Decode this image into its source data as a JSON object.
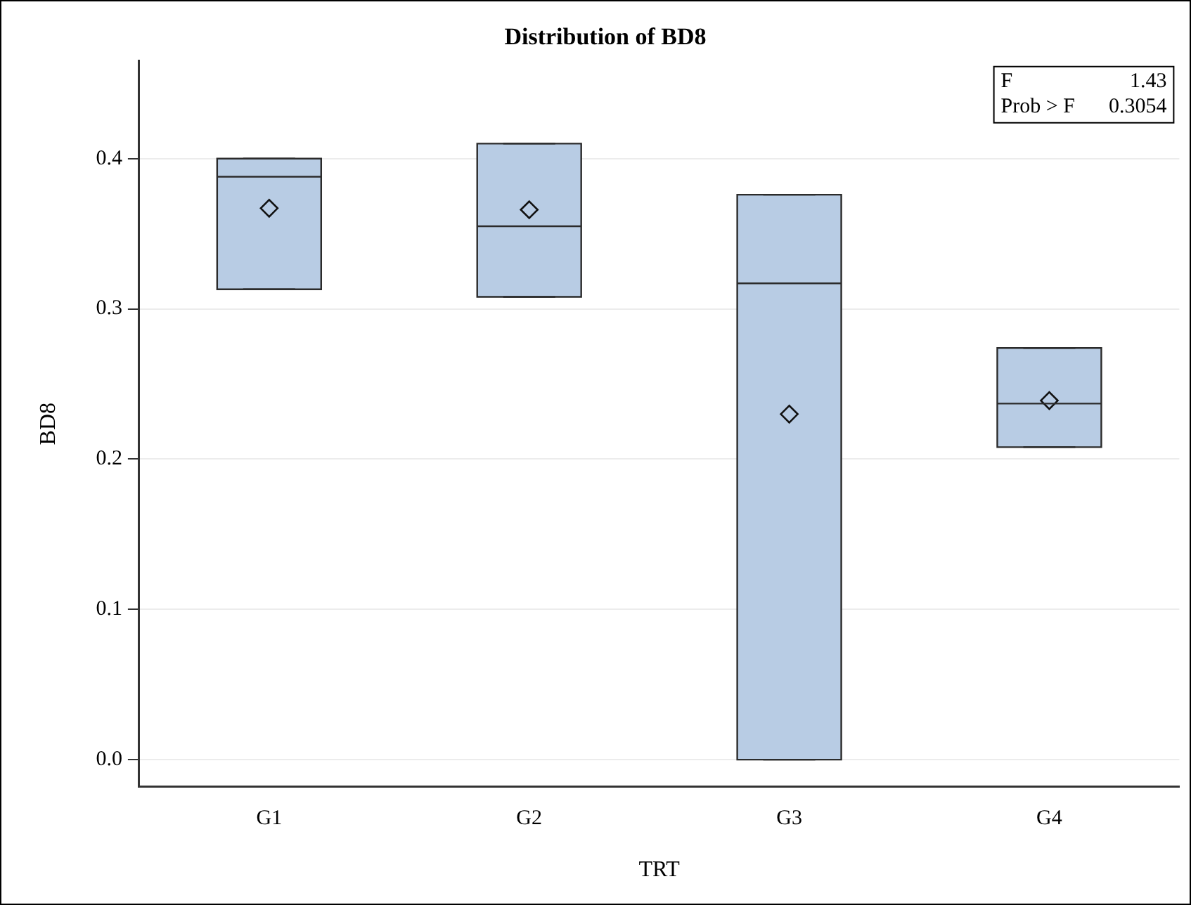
{
  "chart_data": {
    "type": "box",
    "title": "Distribution of BD8",
    "xlabel": "TRT",
    "ylabel": "BD8",
    "categories": [
      "G1",
      "G2",
      "G3",
      "G4"
    ],
    "boxes": [
      {
        "low": 0.313,
        "q1": 0.313,
        "median": 0.388,
        "q3": 0.4,
        "high": 0.4,
        "mean": 0.367
      },
      {
        "low": 0.308,
        "q1": 0.308,
        "median": 0.355,
        "q3": 0.41,
        "high": 0.41,
        "mean": 0.366
      },
      {
        "low": 0,
        "q1": 0,
        "median": 0.317,
        "q3": 0.376,
        "high": 0.376,
        "mean": 0.23
      },
      {
        "low": 0.208,
        "q1": 0.208,
        "median": 0.237,
        "q3": 0.274,
        "high": 0.274,
        "mean": 0.239
      }
    ],
    "color": "#b8cce4",
    "ylim": [
      -0.018,
      0.465
    ],
    "yticks": [
      {
        "value": 0,
        "label": "0.0"
      },
      {
        "value": 0.1,
        "label": "0.1"
      },
      {
        "value": 0.2,
        "label": "0.2"
      },
      {
        "value": 0.3,
        "label": "0.3"
      },
      {
        "value": 0.4,
        "label": "0.4"
      }
    ],
    "grid": "y",
    "annotations": [
      "F 1.43",
      "Prob > F 0.3054"
    ]
  }
}
